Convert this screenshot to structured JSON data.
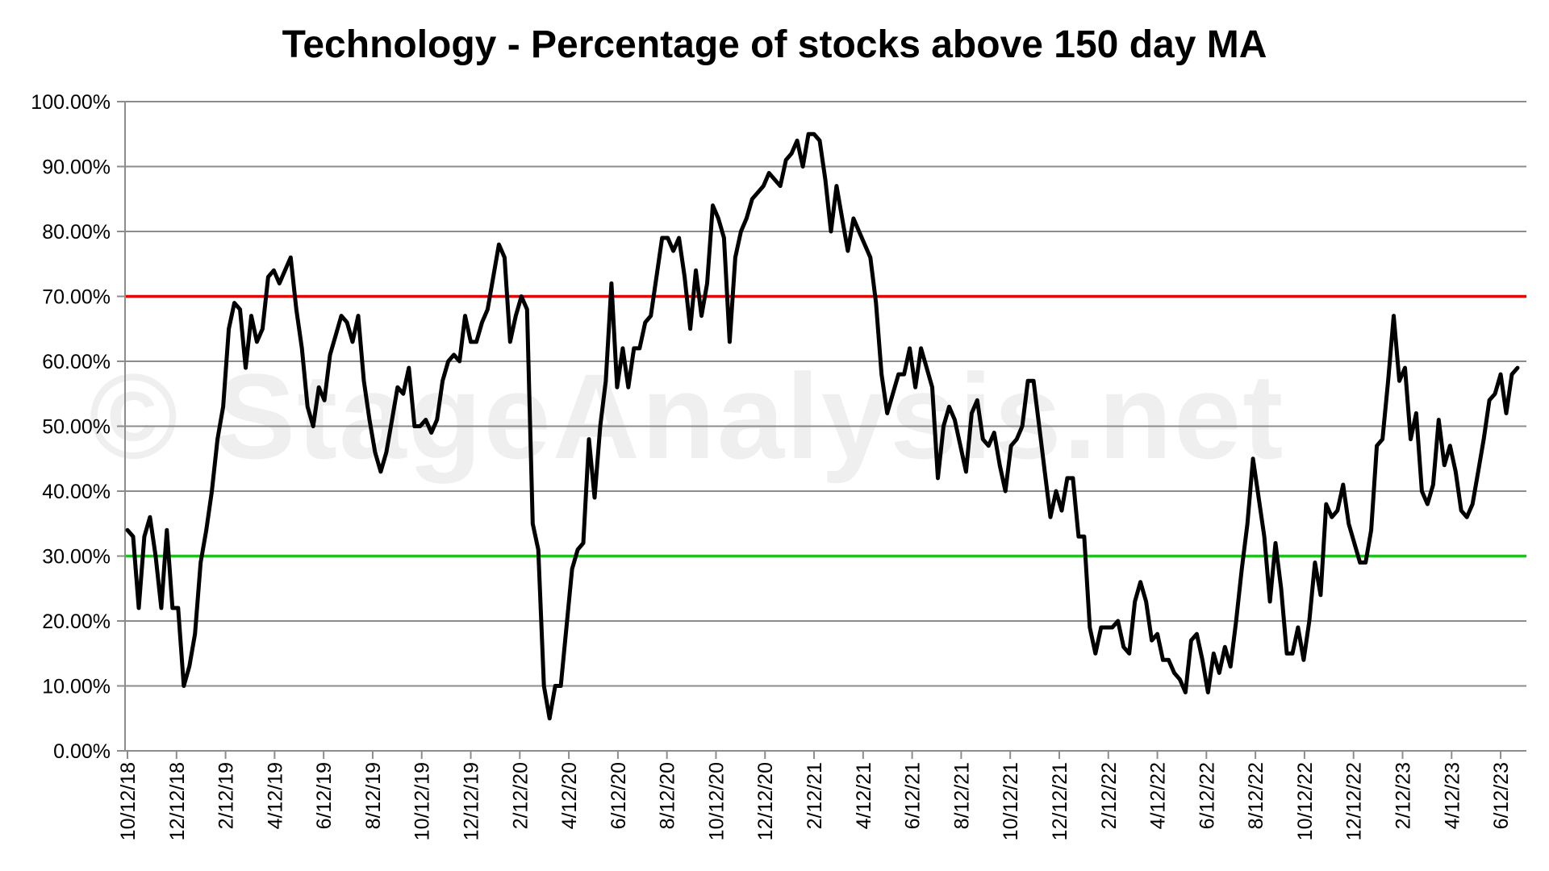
{
  "chart_data": {
    "type": "line",
    "title": "Technology - Percentage of stocks above 150 day MA",
    "watermark": "© StageAnalysis.net",
    "xlabel": "",
    "ylabel": "",
    "ylim": [
      0,
      100
    ],
    "y_ticks": [
      "0.00%",
      "10.00%",
      "20.00%",
      "30.00%",
      "40.00%",
      "50.00%",
      "60.00%",
      "70.00%",
      "80.00%",
      "90.00%",
      "100.00%"
    ],
    "x_tick_labels": [
      "10/12/18",
      "12/12/18",
      "2/12/19",
      "4/12/19",
      "6/12/19",
      "8/12/19",
      "10/12/19",
      "12/12/19",
      "2/12/20",
      "4/12/20",
      "6/12/20",
      "8/12/20",
      "10/12/20",
      "12/12/20",
      "2/12/21",
      "4/12/21",
      "6/12/21",
      "8/12/21",
      "10/12/21",
      "12/12/21",
      "2/12/22",
      "4/12/22",
      "6/12/22",
      "8/12/22",
      "10/12/22",
      "12/12/22",
      "2/12/23",
      "4/12/23",
      "6/12/23"
    ],
    "reference_lines": [
      {
        "value": 70,
        "color": "#e00000"
      },
      {
        "value": 30,
        "color": "#1fc01f"
      }
    ],
    "grid": true,
    "legend": "none",
    "series": [
      {
        "color": "#000000",
        "x_start": "10/12/18",
        "interval": "weekly",
        "values": [
          34,
          33,
          22,
          33,
          36,
          30,
          22,
          34,
          22,
          22,
          10,
          13,
          18,
          29,
          34,
          40,
          48,
          53,
          65,
          69,
          68,
          59,
          67,
          63,
          65,
          73,
          74,
          72,
          74,
          76,
          68,
          62,
          53,
          50,
          56,
          54,
          61,
          64,
          67,
          66,
          63,
          67,
          57,
          51,
          46,
          43,
          46,
          51,
          56,
          55,
          59,
          50,
          50,
          51,
          49,
          51,
          57,
          60,
          61,
          60,
          67,
          63,
          63,
          66,
          68,
          73,
          78,
          76,
          63,
          67,
          70,
          68,
          35,
          31,
          10,
          5,
          10,
          10,
          19,
          28,
          31,
          32,
          48,
          39,
          50,
          57,
          72,
          56,
          62,
          56,
          62,
          62,
          66,
          67,
          73,
          79,
          79,
          77,
          79,
          73,
          65,
          74,
          67,
          72,
          84,
          82,
          79,
          63,
          76,
          80,
          82,
          85,
          86,
          87,
          89,
          88,
          87,
          91,
          92,
          94,
          90,
          95,
          95,
          94,
          88,
          80,
          87,
          82,
          77,
          82,
          80,
          78,
          76,
          69,
          58,
          52,
          55,
          58,
          58,
          62,
          56,
          62,
          59,
          56,
          42,
          50,
          53,
          51,
          47,
          43,
          52,
          54,
          48,
          47,
          49,
          44,
          40,
          47,
          48,
          50,
          57,
          57,
          50,
          43,
          36,
          40,
          37,
          42,
          42,
          33,
          33,
          19,
          15,
          19,
          19,
          19,
          20,
          16,
          15,
          23,
          26,
          23,
          17,
          18,
          14,
          14,
          12,
          11,
          9,
          17,
          18,
          14,
          9,
          15,
          12,
          16,
          13,
          20,
          28,
          35,
          45,
          39,
          33,
          23,
          32,
          25,
          15,
          15,
          19,
          14,
          20,
          29,
          24,
          38,
          36,
          37,
          41,
          35,
          32,
          29,
          29,
          34,
          47,
          48,
          57,
          67,
          57,
          59,
          48,
          52,
          40,
          38,
          41,
          51,
          44,
          47,
          43,
          37,
          36,
          38,
          43,
          48,
          54,
          55,
          58,
          52,
          58,
          59
        ]
      }
    ]
  }
}
